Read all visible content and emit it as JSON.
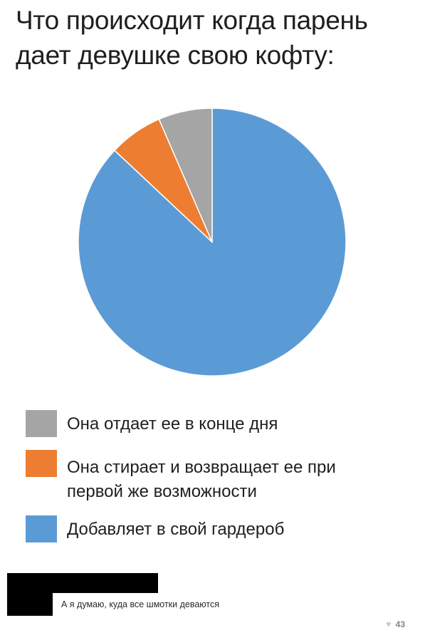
{
  "title_line1": "Что происходит когда парень",
  "title_line2": "дает девушке свою кофту:",
  "chart_data": {
    "type": "pie",
    "title": "Что происходит когда парень дает девушке свою кофту:",
    "start": "top, clockwise",
    "slices": [
      {
        "label": "Добавляет в свой гардероб",
        "value": 87,
        "color": "#5b9bd5"
      },
      {
        "label": "Она стирает и возвращает ее при первой же возможности",
        "value": 6.5,
        "color": "#ed7d31"
      },
      {
        "label": "Она отдает ее в конце дня",
        "value": 6.5,
        "color": "#a5a5a5"
      }
    ],
    "legend_placement": "bottom"
  },
  "legend": [
    {
      "label": "Она отдает ее в конце дня",
      "color": "#a5a5a5"
    },
    {
      "label": "Она стирает и возвращает ее при первой же возможности",
      "color": "#ed7d31"
    },
    {
      "label": "Добавляет в свой гардероб",
      "color": "#5b9bd5"
    }
  ],
  "comment": {
    "text": "А я думаю, куда все шмотки деваются",
    "likes": "43",
    "heart_icon": "heart-icon"
  }
}
